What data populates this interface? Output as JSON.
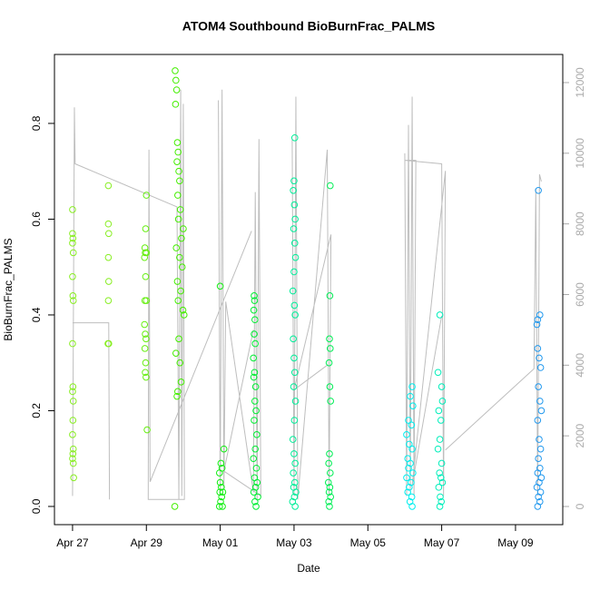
{
  "chart_data": {
    "type": "scatter",
    "title": "ATOM4 Southbound BioBurnFrac_PALMS",
    "x_label": "Date",
    "y_label": "BioBurnFrac_PALMS",
    "xlim": [
      -0.49,
      13.28
    ],
    "xticks": [
      {
        "value": 0,
        "label": "Apr 27"
      },
      {
        "value": 2,
        "label": "Apr 29"
      },
      {
        "value": 4,
        "label": "May 01"
      },
      {
        "value": 6,
        "label": "May 03"
      },
      {
        "value": 8,
        "label": "May 05"
      },
      {
        "value": 10,
        "label": "May 07"
      },
      {
        "value": 12,
        "label": "May 09"
      }
    ],
    "ylim": [
      -0.038,
      0.944
    ],
    "yticks": [
      {
        "value": 0,
        "label": "0.0"
      },
      0.2,
      0.4,
      0.6,
      0.8
    ],
    "y2lim": [
      -514,
      12796
    ],
    "y2ticks": [
      0,
      2000,
      4000,
      6000,
      8000,
      10000,
      12000
    ],
    "series": [
      {
        "type": "line",
        "axis": "y2",
        "color": "#bebebe",
        "x": [
          0.0,
          0.05,
          0.07,
          2.83,
          2.88,
          2.93,
          2.96,
          3.0,
          3.03,
          2.05,
          2.07,
          2.1,
          4.85,
          null,
          0.0,
          0.98,
          1.0,
          null,
          3.95,
          4.0,
          4.05,
          4.1,
          4.15,
          4.9,
          4.95,
          5.0,
          5.05,
          5.1,
          4.1,
          4.9,
          null,
          5.95,
          6.0,
          6.05,
          6.1,
          6.9,
          6.95,
          7.0,
          6.0,
          6.9,
          null,
          9.0,
          9.05,
          9.1,
          9.15,
          9.2,
          9.25,
          9.3,
          9.0,
          10.0,
          10.05,
          10.1,
          9.2,
          10.0,
          null,
          10.1,
          12.5,
          12.55,
          12.6,
          12.65,
          12.7
        ],
        "values": [
          300,
          11300,
          9700,
          8480,
          200,
          11800,
          300,
          11400,
          200,
          200,
          10100,
          700,
          7800,
          null,
          5200,
          5200,
          200,
          null,
          11500,
          300,
          11800,
          500,
          5800,
          400,
          8900,
          200,
          10400,
          300,
          1000,
          5000,
          null,
          10400,
          300,
          11600,
          200,
          10100,
          300,
          7700,
          3300,
          4000,
          null,
          10000,
          300,
          10800,
          400,
          11600,
          300,
          9800,
          9800,
          9700,
          300,
          9500,
          600,
          5400,
          null,
          1600,
          3900,
          9000,
          300,
          9400,
          9200
        ]
      },
      {
        "color": "#88ee22",
        "x": [
          0,
          0,
          0.01,
          0,
          0.02,
          0,
          0.01,
          0.02,
          0,
          0.01,
          0,
          0.02,
          0.01,
          0,
          0.02,
          0.01,
          0,
          0.02,
          0.03
        ],
        "values": [
          0.62,
          0.57,
          0.56,
          0.55,
          0.53,
          0.48,
          0.44,
          0.43,
          0.34,
          0.25,
          0.24,
          0.22,
          0.18,
          0.15,
          0.12,
          0.11,
          0.1,
          0.09,
          0.06
        ]
      },
      {
        "color": "#88ee22",
        "x": [
          0.97,
          0.97,
          0.98,
          0.97,
          0.98,
          0.97,
          0.96,
          0.98
        ],
        "values": [
          0.67,
          0.59,
          0.57,
          0.52,
          0.47,
          0.43,
          0.34,
          0.34
        ]
      },
      {
        "color": "#66ee11",
        "x": [
          2.0,
          1.98,
          1.96,
          1.97,
          2.0,
          1.95,
          1.98,
          1.96,
          2.0,
          1.95,
          1.97,
          1.99,
          1.96,
          1.98,
          1.97,
          1.99,
          2.02
        ],
        "values": [
          0.65,
          0.58,
          0.54,
          0.53,
          0.53,
          0.52,
          0.48,
          0.43,
          0.43,
          0.38,
          0.36,
          0.35,
          0.33,
          0.3,
          0.28,
          0.27,
          0.16
        ]
      },
      {
        "color": "#44ee00",
        "x": [
          2.78,
          2.8,
          2.82,
          2.79,
          2.84,
          2.86,
          2.83,
          2.88,
          2.9,
          2.85,
          2.92,
          2.87,
          3.0,
          2.95,
          2.81,
          2.9,
          2.97,
          2.84,
          2.93,
          2.86,
          2.99,
          3.02,
          2.88,
          2.8,
          2.91,
          2.94,
          2.85,
          2.83,
          2.77
        ],
        "values": [
          0.91,
          0.89,
          0.87,
          0.84,
          0.76,
          0.74,
          0.72,
          0.7,
          0.68,
          0.65,
          0.62,
          0.6,
          0.58,
          0.56,
          0.54,
          0.52,
          0.5,
          0.47,
          0.45,
          0.43,
          0.41,
          0.4,
          0.35,
          0.32,
          0.3,
          0.26,
          0.24,
          0.23,
          0.0
        ]
      },
      {
        "color": "#11ee11",
        "x": [
          4.0,
          4.1,
          4.02,
          4.05,
          3.98,
          4.0,
          4.03,
          4.07,
          3.99,
          4.04,
          4.01,
          3.98,
          4.06
        ],
        "values": [
          0.46,
          0.12,
          0.09,
          0.08,
          0.07,
          0.05,
          0.04,
          0.03,
          0.03,
          0.02,
          0.01,
          0.0,
          0.0
        ]
      },
      {
        "color": "#00ee33",
        "x": [
          4.92,
          4.93,
          4.91,
          4.94,
          4.92,
          4.95,
          4.9,
          4.93,
          4.91,
          4.96,
          4.94,
          4.97,
          4.92,
          4.99,
          4.95,
          4.9,
          4.98,
          4.93,
          5.0,
          4.96,
          4.91,
          5.02,
          4.94,
          4.97
        ],
        "values": [
          0.44,
          0.43,
          0.41,
          0.39,
          0.36,
          0.34,
          0.31,
          0.28,
          0.27,
          0.25,
          0.22,
          0.2,
          0.18,
          0.15,
          0.12,
          0.1,
          0.08,
          0.06,
          0.05,
          0.04,
          0.03,
          0.02,
          0.01,
          0.0
        ]
      },
      {
        "color": "#00ee99",
        "x": [
          6.02,
          6.0,
          5.98,
          6.01,
          6.03,
          5.99,
          6.02,
          6.04,
          6.0,
          5.97,
          6.01,
          6.03,
          5.98,
          6.0,
          6.02,
          5.99,
          6.04,
          6.01,
          5.97,
          6.0,
          6.03,
          5.98,
          6.02,
          5.99,
          6.05,
          6.01,
          5.96,
          6.03
        ],
        "values": [
          0.77,
          0.68,
          0.66,
          0.63,
          0.6,
          0.58,
          0.55,
          0.52,
          0.49,
          0.45,
          0.42,
          0.4,
          0.35,
          0.31,
          0.28,
          0.25,
          0.22,
          0.18,
          0.14,
          0.11,
          0.09,
          0.07,
          0.05,
          0.04,
          0.03,
          0.02,
          0.01,
          0.0
        ]
      },
      {
        "color": "#00ee55",
        "x": [
          6.98,
          6.97,
          6.96,
          6.98,
          6.95,
          6.97,
          6.99,
          6.96,
          6.94,
          6.98,
          6.93,
          6.97,
          6.95,
          6.99,
          6.94,
          6.96
        ],
        "values": [
          0.67,
          0.44,
          0.35,
          0.33,
          0.3,
          0.25,
          0.22,
          0.11,
          0.09,
          0.07,
          0.05,
          0.04,
          0.03,
          0.02,
          0.01,
          0.0
        ]
      },
      {
        "color": "#00eeee",
        "x": [
          9.2,
          9.15,
          9.22,
          9.1,
          9.18,
          9.05,
          9.12,
          9.2,
          9.08,
          9.15,
          9.1,
          9.22,
          9.05,
          9.17,
          9.12,
          9.08,
          9.19,
          9.14,
          9.2
        ],
        "values": [
          0.25,
          0.23,
          0.21,
          0.18,
          0.17,
          0.15,
          0.13,
          0.12,
          0.1,
          0.09,
          0.08,
          0.07,
          0.06,
          0.05,
          0.04,
          0.03,
          0.02,
          0.01,
          0.0
        ]
      },
      {
        "color": "#00eebb",
        "x": [
          9.95,
          9.9,
          10.0,
          10.02,
          9.92,
          9.98,
          9.95,
          9.9,
          10.0,
          9.94,
          9.98,
          10.02,
          9.92,
          9.96,
          9.99,
          9.95
        ],
        "values": [
          0.4,
          0.28,
          0.25,
          0.22,
          0.2,
          0.18,
          0.14,
          0.12,
          0.09,
          0.07,
          0.06,
          0.05,
          0.04,
          0.02,
          0.01,
          0.0
        ]
      },
      {
        "color": "#2299ee",
        "x": [
          12.62,
          12.66,
          12.6,
          12.58,
          12.6,
          12.64,
          12.68,
          12.62,
          12.66,
          12.7,
          12.6,
          12.64,
          12.68,
          12.62,
          12.66,
          12.6,
          12.7,
          12.64,
          12.58,
          12.68,
          12.62,
          12.66,
          12.6
        ],
        "values": [
          0.66,
          0.4,
          0.39,
          0.38,
          0.33,
          0.31,
          0.29,
          0.25,
          0.22,
          0.2,
          0.18,
          0.14,
          0.12,
          0.1,
          0.08,
          0.07,
          0.06,
          0.05,
          0.04,
          0.03,
          0.02,
          0.01,
          0.0
        ]
      }
    ]
  }
}
